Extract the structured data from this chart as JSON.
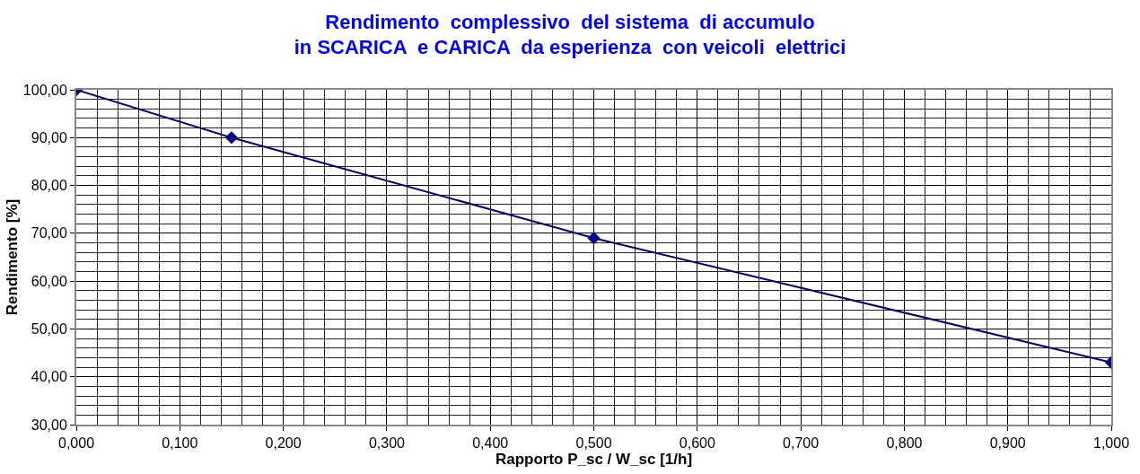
{
  "chart_data": {
    "type": "line",
    "title": "Rendimento  complessivo  del sistema  di accumulo\nin SCARICA  e CARICA  da esperienza  con veicoli  elettrici",
    "xlabel": "Rapporto P_sc / W_sc [1/h]",
    "ylabel": "Rendimento [%]",
    "x": [
      0,
      0.15,
      0.5,
      1.0
    ],
    "series": [
      {
        "color": "#000080",
        "values": [
          100,
          90,
          69,
          43
        ]
      }
    ],
    "xlim": [
      0,
      1
    ],
    "ylim": [
      30,
      100
    ],
    "xticks": [
      {
        "value": 0,
        "label": "0,000"
      },
      {
        "value": 0.1,
        "label": "0,100"
      },
      {
        "value": 0.2,
        "label": "0,200"
      },
      {
        "value": 0.3,
        "label": "0,300"
      },
      {
        "value": 0.4,
        "label": "0,400"
      },
      {
        "value": 0.5,
        "label": "0,500"
      },
      {
        "value": 0.6,
        "label": "0,600"
      },
      {
        "value": 0.7,
        "label": "0,700"
      },
      {
        "value": 0.8,
        "label": "0,800"
      },
      {
        "value": 0.9,
        "label": "0,900"
      },
      {
        "value": 1.0,
        "label": "1,000"
      }
    ],
    "yticks": [
      {
        "value": 30,
        "label": "30,00"
      },
      {
        "value": 40,
        "label": "40,00"
      },
      {
        "value": 50,
        "label": "50,00"
      },
      {
        "value": 60,
        "label": "60,00"
      },
      {
        "value": 70,
        "label": "70,00"
      },
      {
        "value": 80,
        "label": "80,00"
      },
      {
        "value": 90,
        "label": "90,00"
      },
      {
        "value": 100,
        "label": "100,00"
      }
    ],
    "grid": true,
    "marker": "diamond",
    "line_style": "solid"
  }
}
